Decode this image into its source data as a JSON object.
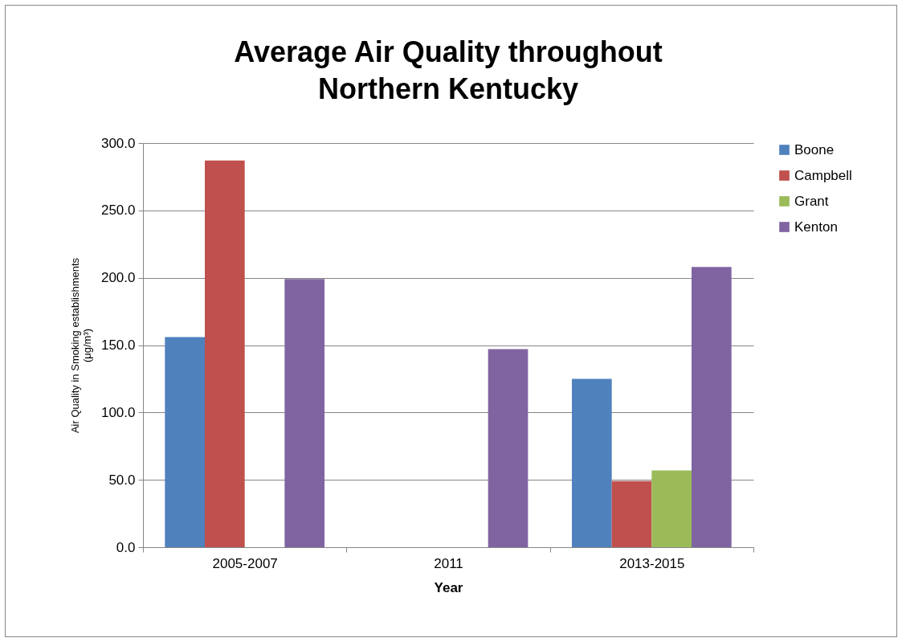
{
  "chart_data": {
    "type": "bar",
    "title": "Average Air Quality throughout\nNorthern Kentucky",
    "xlabel": "Year",
    "ylabel": "Air Quality in Smoking establishments\n(μg/m³)",
    "categories": [
      "2005-2007",
      "2011",
      "2013-2015"
    ],
    "series": [
      {
        "name": "Boone",
        "color": "#4f81bd",
        "values": [
          156,
          null,
          125
        ]
      },
      {
        "name": "Campbell",
        "color": "#c0504d",
        "values": [
          287,
          null,
          49
        ]
      },
      {
        "name": "Grant",
        "color": "#9bbb59",
        "values": [
          null,
          null,
          57
        ]
      },
      {
        "name": "Kenton",
        "color": "#8064a2",
        "values": [
          199,
          147,
          208
        ]
      }
    ],
    "ylim": [
      0,
      300
    ],
    "yticks": [
      {
        "value": 0,
        "label": "0.0"
      },
      {
        "value": 50,
        "label": "50.0"
      },
      {
        "value": 100,
        "label": "100.0"
      },
      {
        "value": 150,
        "label": "150.0"
      },
      {
        "value": 200,
        "label": "200.0"
      },
      {
        "value": 250,
        "label": "250.0"
      },
      {
        "value": 300,
        "label": "300.0"
      }
    ],
    "grid": "y",
    "legend": "right"
  }
}
